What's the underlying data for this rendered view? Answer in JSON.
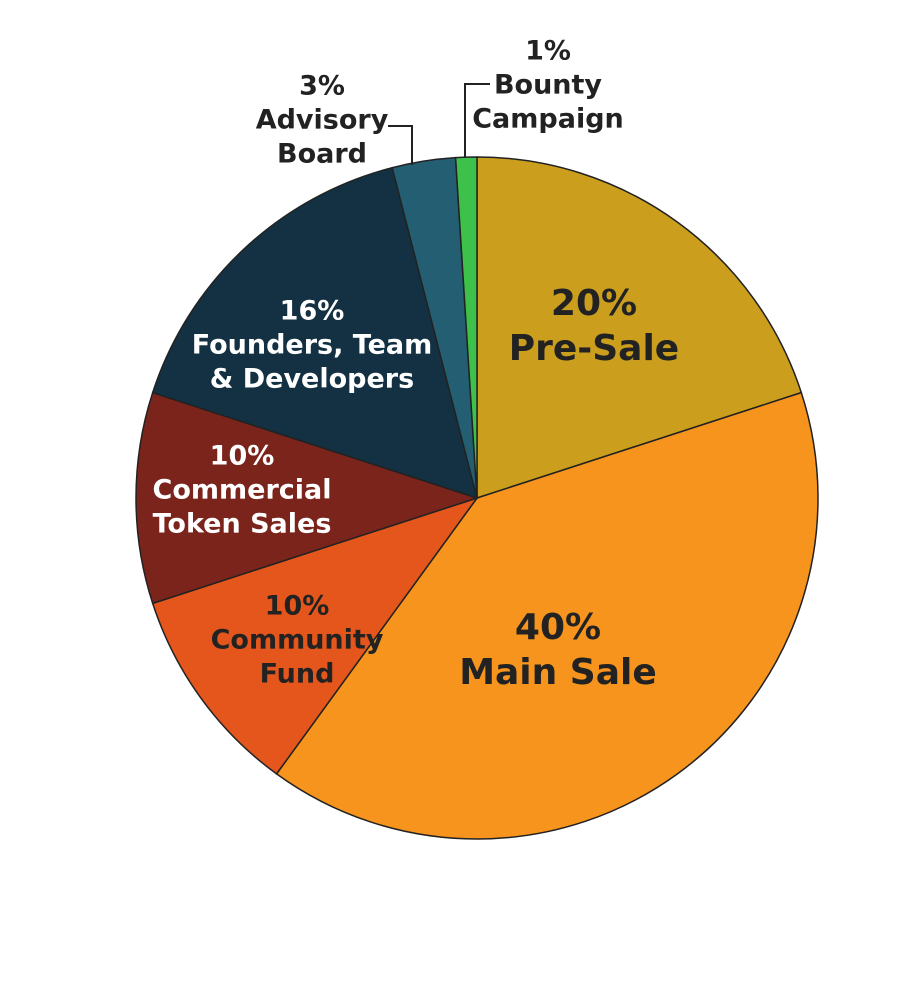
{
  "chart_data": {
    "type": "pie",
    "categories": [
      "Pre-Sale",
      "Main Sale",
      "Community Fund",
      "Commercial Token Sales",
      "Founders, Team & Developers",
      "Advisory Board",
      "Bounty Campaign"
    ],
    "values": [
      20,
      40,
      10,
      10,
      16,
      3,
      1
    ],
    "value_labels": [
      "20%",
      "40%",
      "10%",
      "10%",
      "16%",
      "3%",
      "1%"
    ],
    "colors": [
      "#cc9e1e",
      "#f7941d",
      "#e4561b",
      "#7b241c",
      "#133142",
      "#245e72",
      "#3ec14b"
    ]
  }
}
